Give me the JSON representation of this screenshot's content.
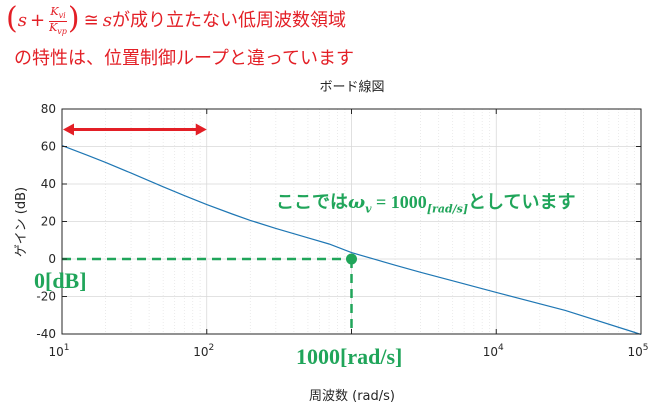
{
  "header": {
    "line1_suffix": "が成り立たない低周波数領域",
    "line2": "の特性は、位置制御ループと違っています",
    "formula": {
      "s": "s",
      "plus": "+",
      "k_vi": "K",
      "k_vi_sub": "vi",
      "k_vp": "K",
      "k_vp_sub": "vp",
      "approx": "≅",
      "rhs": "s"
    }
  },
  "annotations": {
    "omega_prefix": "ここでは",
    "omega_symbol": "ω",
    "omega_sub": "v",
    "omega_eq": " = 1000",
    "omega_unit": "[rad/s]",
    "omega_suffix": "としています",
    "zero_db_label": "0[dB]",
    "crossover_label": "1000[rad/s]"
  },
  "colors": {
    "red": "#e31f26",
    "green": "#20a55a",
    "curve": "#1f77b4",
    "grid": "#d9d9d9",
    "axis": "#262626"
  },
  "chart_data": {
    "type": "line",
    "title": "ボード線図",
    "xlabel": "周波数 (rad/s)",
    "ylabel": "ゲイン (dB)",
    "xscale": "log",
    "xlim": [
      10,
      100000
    ],
    "ylim": [
      -40,
      80
    ],
    "y_ticks": [
      -40,
      -20,
      0,
      20,
      40,
      60,
      80
    ],
    "x_ticks": [
      10,
      100,
      1000,
      10000,
      100000
    ],
    "x_tick_labels": [
      {
        "base": "10",
        "exp": "1"
      },
      {
        "base": "10",
        "exp": "2"
      },
      {
        "base": "",
        "exp": ""
      },
      {
        "base": "10",
        "exp": "4"
      },
      {
        "base": "10",
        "exp": "5"
      }
    ],
    "grid": true,
    "series": [
      {
        "x": [
          10,
          15,
          20,
          30,
          50,
          70,
          100,
          150,
          200,
          300,
          500,
          700,
          1000,
          2000,
          3000,
          5000,
          10000,
          30000,
          100000
        ],
        "y": [
          60.5,
          55.3,
          51.5,
          45.8,
          38.5,
          33.8,
          29.0,
          24.0,
          20.6,
          16.3,
          11.3,
          8.0,
          3.4,
          -3.3,
          -7.1,
          -11.6,
          -17.8,
          -27.4,
          -40.2
        ]
      }
    ],
    "marker": {
      "x": 1000,
      "y": 0
    },
    "range_arrow": {
      "x_from": 10,
      "x_to": 100,
      "y": 68
    }
  }
}
